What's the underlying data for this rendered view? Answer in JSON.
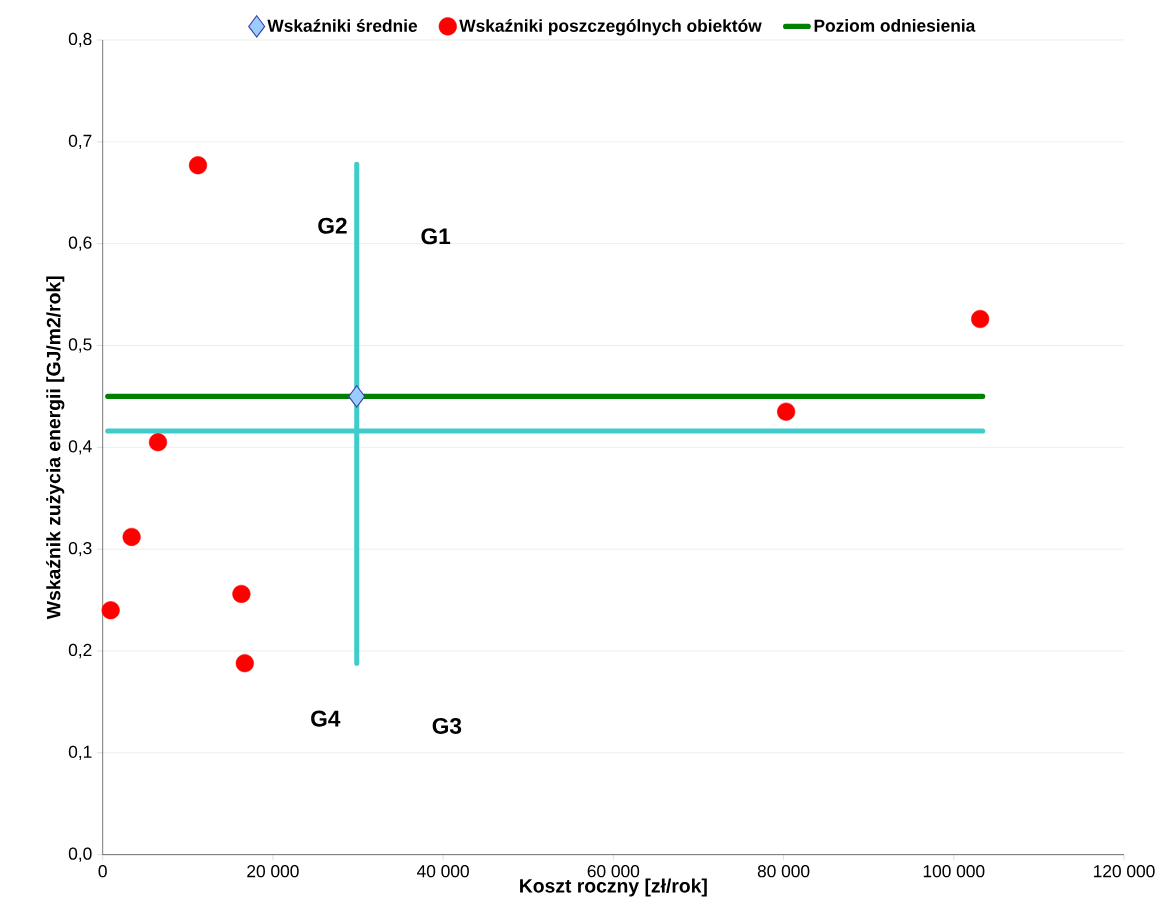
{
  "chart_data": {
    "type": "scatter",
    "xlabel": "Koszt roczny [zł/rok]",
    "ylabel": "Wskaźnik zużycia energii [GJ/m2/rok]",
    "xlim": [
      0,
      120000
    ],
    "ylim": [
      0,
      0.8
    ],
    "xticks": [
      0,
      {
        "value": 20000,
        "label": "20 000"
      },
      {
        "value": 40000,
        "label": "40 000"
      },
      {
        "value": 60000,
        "label": "60 000"
      },
      {
        "value": 80000,
        "label": "80 000"
      },
      {
        "value": 100000,
        "label": "100 000"
      },
      {
        "value": 120000,
        "label": "120 000"
      }
    ],
    "yticks": [
      {
        "value": 0,
        "label": "0,0"
      },
      {
        "value": 0.1,
        "label": "0,1"
      },
      {
        "value": 0.2,
        "label": "0,2"
      },
      {
        "value": 0.3,
        "label": "0,3"
      },
      {
        "value": 0.4,
        "label": "0,4"
      },
      {
        "value": 0.5,
        "label": "0,5"
      },
      {
        "value": 0.6,
        "label": "0,6"
      },
      {
        "value": 0.7,
        "label": "0,7"
      },
      {
        "value": 0.8,
        "label": "0,8"
      }
    ],
    "grid": "y",
    "legend": "top",
    "series": [
      {
        "name": "Wskaźniki średnie",
        "marker": "diamond",
        "color": "#99ccff",
        "x": [
          29850
        ],
        "values": [
          0.45
        ]
      },
      {
        "name": "Wskaźniki poszczególnych obiektów",
        "marker": "circle",
        "color": "#ff0000",
        "x": [
          940,
          3400,
          6500,
          11200,
          16300,
          16700,
          80300,
          103100
        ],
        "values": [
          0.24,
          0.312,
          0.405,
          0.677,
          0.256,
          0.188,
          0.435,
          0.526
        ]
      },
      {
        "name": "Poziom odniesienia",
        "type": "line",
        "marker": "none",
        "color": "#008000",
        "x": [
          590,
          103400
        ],
        "values": [
          0.45,
          0.45
        ]
      },
      {
        "type": "line",
        "marker": "none",
        "color": "#40cccc",
        "x": [
          590,
          103400
        ],
        "values": [
          0.416,
          0.416
        ]
      },
      {
        "type": "line",
        "marker": "none",
        "color": "#40cccc",
        "x": [
          29850,
          29850
        ],
        "values": [
          0.678,
          0.188
        ]
      }
    ],
    "annotations": [
      "G1",
      "G2",
      "G3",
      "G4"
    ]
  }
}
